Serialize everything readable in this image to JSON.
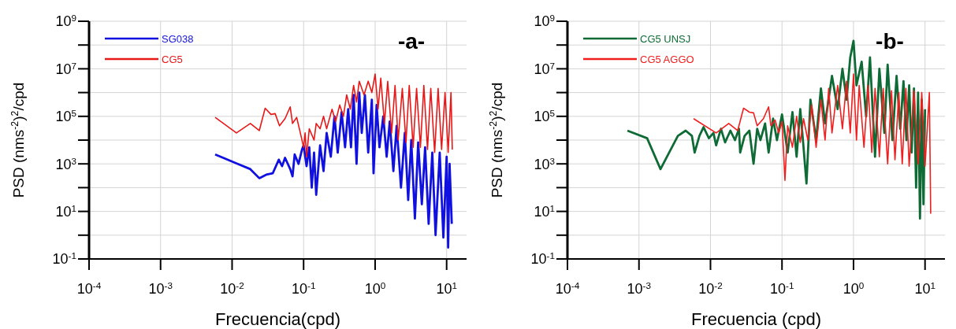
{
  "chart_data": [
    {
      "type": "line",
      "title": "-a-",
      "xlabel": "Frecuencia(cpd)",
      "ylabel": "PSD (nms$^{-2}$)$^{2}$/cpd",
      "log": "xy",
      "grid": true,
      "legend": "top left",
      "line_style": "solid",
      "xlim": [
        0.0001,
        19
      ],
      "ylim": [
        0.1,
        1000000000
      ],
      "xticks": [
        {
          "value": 0.0001,
          "label": "10$^{-4}$"
        },
        {
          "value": 0.001,
          "label": "10$^{-3}$"
        },
        {
          "value": 0.01,
          "label": "10$^{-2}$"
        },
        {
          "value": 0.1,
          "label": "10$^{-1}$"
        },
        {
          "value": 1,
          "label": "10$^{0}$"
        },
        {
          "value": 10,
          "label": "10$^{1}$"
        }
      ],
      "yticks": [
        {
          "value": 0.1,
          "label": "10$^{-1}$"
        },
        {
          "value": 1,
          "label": null
        },
        {
          "value": 10,
          "label": "10$^{1}$"
        },
        {
          "value": 100,
          "label": null
        },
        {
          "value": 1000,
          "label": "10$^{3}$"
        },
        {
          "value": 10000,
          "label": null
        },
        {
          "value": 100000,
          "label": "10$^{5}$"
        },
        {
          "value": 1000000,
          "label": null
        },
        {
          "value": 10000000,
          "label": "10$^{7}$"
        },
        {
          "value": 100000000,
          "label": null
        },
        {
          "value": 1000000000,
          "label": "10$^{9}$"
        }
      ],
      "series": [
        {
          "name": "SG038",
          "color": "#1010e0",
          "x": [
            0.0058,
            0.012,
            0.018,
            0.024,
            0.03,
            0.037,
            0.045,
            0.05,
            0.055,
            0.065,
            0.07,
            0.075,
            0.085,
            0.095,
            0.1,
            0.11,
            0.12,
            0.13,
            0.14,
            0.15,
            0.17,
            0.19,
            0.21,
            0.24,
            0.27,
            0.3,
            0.34,
            0.38,
            0.42,
            0.46,
            0.5,
            0.55,
            0.6,
            0.65,
            0.72,
            0.8,
            0.9,
            0.95,
            1.05,
            1.15,
            1.3,
            1.45,
            1.6,
            1.8,
            2.0,
            2.3,
            2.6,
            2.9,
            3.2,
            3.6,
            4,
            4.5,
            5,
            5.6,
            6.3,
            7,
            8,
            9,
            10,
            10.5,
            11,
            11.8
          ],
          "values": [
            2500,
            1000,
            600,
            250,
            350,
            400,
            1500,
            800,
            1800,
            600,
            300,
            2500,
            1000,
            4000,
            6000,
            800,
            5000,
            100,
            3000,
            50,
            6000,
            500,
            20000,
            2000,
            100000,
            3000,
            150000,
            5000,
            200000,
            5000,
            800000,
            1000,
            1000000,
            20000,
            800000,
            3000,
            500000,
            400,
            300000,
            5000,
            100000,
            2000,
            60000,
            500,
            40000,
            100,
            20000,
            30,
            10000,
            5,
            8000,
            20,
            5000,
            3,
            3000,
            1,
            3000,
            0.8,
            2000,
            0.3,
            1000,
            3
          ]
        },
        {
          "name": "CG5",
          "color": "#e81818",
          "x": [
            0.0058,
            0.0115,
            0.018,
            0.024,
            0.029,
            0.035,
            0.04,
            0.046,
            0.055,
            0.065,
            0.07,
            0.08,
            0.09,
            0.1,
            0.105,
            0.11,
            0.12,
            0.14,
            0.15,
            0.17,
            0.19,
            0.21,
            0.25,
            0.28,
            0.32,
            0.36,
            0.4,
            0.45,
            0.5,
            0.55,
            0.6,
            0.7,
            0.8,
            0.9,
            1.0,
            1.1,
            1.2,
            1.35,
            1.5,
            1.7,
            1.9,
            2.1,
            2.4,
            2.7,
            3,
            3.4,
            3.8,
            4.3,
            4.8,
            5.4,
            6,
            6.8,
            7.6,
            8.5,
            9.5,
            10.5,
            11.5,
            12
          ],
          "values": [
            90000,
            20000,
            50000,
            25000,
            220000,
            120000,
            130000,
            40000,
            80000,
            250000,
            50000,
            90000,
            20000,
            5000,
            20000,
            2000,
            30000,
            10000,
            50000,
            30000,
            100000,
            30000,
            200000,
            60000,
            300000,
            100000,
            800000,
            200000,
            2000000,
            400000,
            3000000,
            800000,
            3000000,
            1000000,
            6000000,
            200000,
            4000000,
            50000,
            3000000,
            20000,
            2000000,
            10000,
            1500000,
            8000,
            2000000,
            5000,
            1500000,
            5000,
            2000000,
            4000,
            1500000,
            3000,
            1500000,
            4000,
            1000000,
            3000,
            1000000,
            4000
          ]
        }
      ]
    },
    {
      "type": "line",
      "title": "-b-",
      "xlabel": "Frecuencia (cpd)",
      "ylabel": "PSD (nms$^{-2}$)$^{2}$/cpd",
      "log": "xy",
      "grid": true,
      "legend": "top left",
      "line_style": "solid",
      "xlim": [
        0.0001,
        19
      ],
      "ylim": [
        0.1,
        1000000000
      ],
      "xticks": [
        {
          "value": 0.0001,
          "label": "10$^{-4}$"
        },
        {
          "value": 0.001,
          "label": "10$^{-3}$"
        },
        {
          "value": 0.01,
          "label": "10$^{-2}$"
        },
        {
          "value": 0.1,
          "label": "10$^{-1}$"
        },
        {
          "value": 1,
          "label": "10$^{0}$"
        },
        {
          "value": 10,
          "label": "10$^{1}$"
        }
      ],
      "yticks": [
        {
          "value": 0.1,
          "label": "10$^{-1}$"
        },
        {
          "value": 1,
          "label": null
        },
        {
          "value": 10,
          "label": "10$^{1}$"
        },
        {
          "value": 100,
          "label": null
        },
        {
          "value": 1000,
          "label": "10$^{3}$"
        },
        {
          "value": 10000,
          "label": null
        },
        {
          "value": 100000,
          "label": "10$^{5}$"
        },
        {
          "value": 1000000,
          "label": null
        },
        {
          "value": 10000000,
          "label": "10$^{7}$"
        },
        {
          "value": 100000000,
          "label": null
        },
        {
          "value": 1000000000,
          "label": "10$^{9}$"
        }
      ],
      "series": [
        {
          "name": "CG5 UNSJ",
          "color": "#0f6b35",
          "x": [
            0.00069,
            0.0013,
            0.002,
            0.0035,
            0.0045,
            0.0055,
            0.006,
            0.007,
            0.008,
            0.0095,
            0.011,
            0.012,
            0.014,
            0.016,
            0.019,
            0.022,
            0.025,
            0.026,
            0.03,
            0.035,
            0.04,
            0.045,
            0.05,
            0.058,
            0.065,
            0.075,
            0.085,
            0.1,
            0.12,
            0.14,
            0.16,
            0.18,
            0.2,
            0.22,
            0.25,
            0.3,
            0.35,
            0.4,
            0.5,
            0.6,
            0.7,
            0.8,
            0.9,
            1.0,
            1.1,
            1.3,
            1.5,
            1.7,
            2.0,
            2.3,
            2.7,
            3,
            3.5,
            4,
            4.5,
            5,
            5.5,
            6,
            6.5,
            7,
            7.5,
            8,
            8.5,
            9,
            9.5,
            10
          ],
          "values": [
            25000,
            12000,
            600,
            15000,
            25000,
            15000,
            3000,
            15000,
            35000,
            12000,
            20000,
            6000,
            30000,
            8000,
            25000,
            10000,
            30000,
            3000,
            15000,
            25000,
            1000,
            30000,
            10000,
            50000,
            3000,
            80000,
            10000,
            120000,
            3000,
            150000,
            2000,
            200000,
            5000,
            150,
            500000,
            10000,
            1500000,
            50000,
            5000000,
            200000,
            10000000,
            500000,
            30000000,
            150000000,
            2000000,
            20000000,
            100000,
            30000000,
            2000,
            10000000,
            20000,
            15000000,
            10000,
            5000000,
            30000,
            3000000,
            10000,
            2000000,
            3000,
            1500000,
            100,
            1000000,
            5,
            500000,
            20,
            200000
          ]
        },
        {
          "name": "CG5 AGGO",
          "color": "#f01e1e",
          "x": [
            0.0058,
            0.012,
            0.018,
            0.024,
            0.029,
            0.035,
            0.04,
            0.045,
            0.055,
            0.065,
            0.07,
            0.08,
            0.09,
            0.1,
            0.11,
            0.12,
            0.14,
            0.16,
            0.18,
            0.2,
            0.23,
            0.26,
            0.3,
            0.35,
            0.4,
            0.45,
            0.5,
            0.6,
            0.7,
            0.8,
            0.9,
            1.0,
            1.1,
            1.2,
            1.4,
            1.6,
            1.8,
            2,
            2.3,
            2.6,
            3,
            3.4,
            3.8,
            4.3,
            4.8,
            5.4,
            6,
            7,
            8,
            9,
            10,
            11.5,
            12
          ],
          "values": [
            80000,
            20000,
            50000,
            25000,
            220000,
            150000,
            140000,
            40000,
            80000,
            250000,
            40000,
            70000,
            20000,
            60000,
            200,
            40000,
            5000,
            100000,
            8000,
            80000,
            10000,
            300000,
            5000,
            500000,
            10000,
            1500000,
            20000,
            2000000,
            30000,
            3000000,
            20000,
            6000000,
            10000,
            2000000,
            5000,
            2000000,
            3000,
            1500000,
            2000,
            1500000,
            1000,
            1200000,
            1500,
            1000000,
            1000,
            1500000,
            800,
            1200000,
            1000,
            1000000,
            800,
            1000000,
            8
          ]
        }
      ]
    }
  ]
}
